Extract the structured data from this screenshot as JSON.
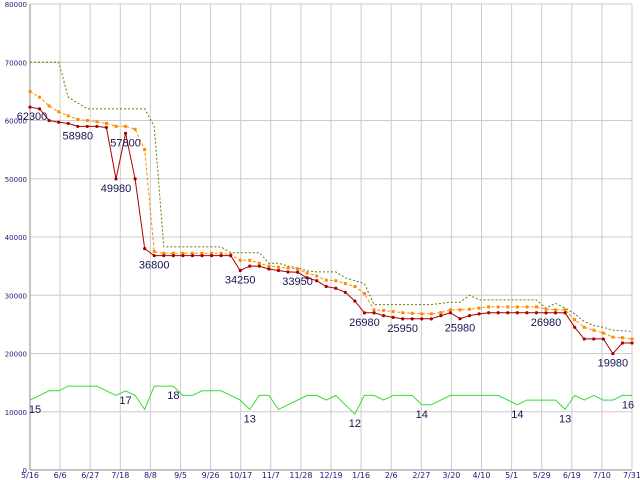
{
  "chart_data": {
    "type": "line",
    "title": "",
    "xlabel": "",
    "ylabel": "",
    "ylim": [
      0,
      80000
    ],
    "y_ticks": [
      0,
      10000,
      20000,
      30000,
      40000,
      50000,
      60000,
      70000,
      80000
    ],
    "grid": true,
    "x_tick_labels": [
      "5/16",
      "6/6",
      "6/27",
      "7/18",
      "8/8",
      "9/5",
      "9/26",
      "10/17",
      "11/7",
      "11/28",
      "12/19",
      "1/16",
      "2/6",
      "2/27",
      "3/20",
      "4/10",
      "5/1",
      "5/29",
      "6/19",
      "7/10",
      "7/31"
    ],
    "colors": {
      "price": "#aa0000",
      "average": "#ff8c00",
      "upper": "#6b7a00",
      "count": "#33dd33",
      "grid": "#cccccc",
      "text": "#1a1a7a"
    },
    "series": [
      {
        "key": "price",
        "style": "solid-markers",
        "points": [
          [
            0,
            62300
          ],
          [
            1,
            62000
          ],
          [
            2,
            60000
          ],
          [
            3,
            59700
          ],
          [
            4,
            59500
          ],
          [
            5,
            58980
          ],
          [
            6,
            58980
          ],
          [
            7,
            58980
          ],
          [
            8,
            58800
          ],
          [
            9,
            49980
          ],
          [
            10,
            57800
          ],
          [
            11,
            49980
          ],
          [
            12,
            38000
          ],
          [
            13,
            36800
          ],
          [
            14,
            36800
          ],
          [
            15,
            36800
          ],
          [
            16,
            36800
          ],
          [
            17,
            36800
          ],
          [
            18,
            36800
          ],
          [
            19,
            36800
          ],
          [
            20,
            36800
          ],
          [
            21,
            36800
          ],
          [
            22,
            34250
          ],
          [
            23,
            35000
          ],
          [
            24,
            35000
          ],
          [
            25,
            34500
          ],
          [
            26,
            34250
          ],
          [
            27,
            34000
          ],
          [
            28,
            33950
          ],
          [
            29,
            33000
          ],
          [
            30,
            32500
          ],
          [
            31,
            31500
          ],
          [
            32,
            31200
          ],
          [
            33,
            30500
          ],
          [
            34,
            29000
          ],
          [
            35,
            26980
          ],
          [
            36,
            26980
          ],
          [
            37,
            26500
          ],
          [
            38,
            26200
          ],
          [
            39,
            25950
          ],
          [
            40,
            25950
          ],
          [
            41,
            25950
          ],
          [
            42,
            25950
          ],
          [
            43,
            26500
          ],
          [
            44,
            27000
          ],
          [
            45,
            25980
          ],
          [
            46,
            26500
          ],
          [
            47,
            26800
          ],
          [
            48,
            27000
          ],
          [
            49,
            27000
          ],
          [
            50,
            27000
          ],
          [
            51,
            27000
          ],
          [
            52,
            27000
          ],
          [
            53,
            27000
          ],
          [
            54,
            26980
          ],
          [
            55,
            26980
          ],
          [
            56,
            26980
          ],
          [
            57,
            24500
          ],
          [
            58,
            22500
          ],
          [
            59,
            22500
          ],
          [
            60,
            22500
          ],
          [
            61,
            19980
          ],
          [
            62,
            21800
          ],
          [
            63,
            21800
          ]
        ]
      },
      {
        "key": "average",
        "style": "dashed-markers",
        "points": [
          [
            0,
            65000
          ],
          [
            1,
            64000
          ],
          [
            2,
            62500
          ],
          [
            3,
            61500
          ],
          [
            4,
            60800
          ],
          [
            5,
            60200
          ],
          [
            6,
            60000
          ],
          [
            7,
            59800
          ],
          [
            8,
            59500
          ],
          [
            9,
            59000
          ],
          [
            10,
            59000
          ],
          [
            11,
            58500
          ],
          [
            12,
            55000
          ],
          [
            13,
            37500
          ],
          [
            14,
            37200
          ],
          [
            15,
            37200
          ],
          [
            16,
            37200
          ],
          [
            17,
            37200
          ],
          [
            18,
            37200
          ],
          [
            19,
            37200
          ],
          [
            20,
            37200
          ],
          [
            21,
            37000
          ],
          [
            22,
            36000
          ],
          [
            23,
            36000
          ],
          [
            24,
            35500
          ],
          [
            25,
            35000
          ],
          [
            26,
            34800
          ],
          [
            27,
            34700
          ],
          [
            28,
            34500
          ],
          [
            29,
            33800
          ],
          [
            30,
            33300
          ],
          [
            31,
            32600
          ],
          [
            32,
            32500
          ],
          [
            33,
            32000
          ],
          [
            34,
            31500
          ],
          [
            35,
            30300
          ],
          [
            36,
            27500
          ],
          [
            37,
            27400
          ],
          [
            38,
            27200
          ],
          [
            39,
            27000
          ],
          [
            40,
            26900
          ],
          [
            41,
            26800
          ],
          [
            42,
            26800
          ],
          [
            43,
            27000
          ],
          [
            44,
            27500
          ],
          [
            45,
            27500
          ],
          [
            46,
            27600
          ],
          [
            47,
            27800
          ],
          [
            48,
            28000
          ],
          [
            49,
            28000
          ],
          [
            50,
            28000
          ],
          [
            51,
            28000
          ],
          [
            52,
            28000
          ],
          [
            53,
            28000
          ],
          [
            54,
            27600
          ],
          [
            55,
            27500
          ],
          [
            56,
            27500
          ],
          [
            57,
            25800
          ],
          [
            58,
            24500
          ],
          [
            59,
            24000
          ],
          [
            60,
            23500
          ],
          [
            61,
            22800
          ],
          [
            62,
            22700
          ],
          [
            63,
            22500
          ]
        ]
      },
      {
        "key": "upper",
        "style": "dotted",
        "points": [
          [
            0,
            70000
          ],
          [
            3,
            70000
          ],
          [
            4,
            64000
          ],
          [
            5,
            63000
          ],
          [
            6,
            62000
          ],
          [
            12,
            62000
          ],
          [
            13,
            59000
          ],
          [
            14,
            38300
          ],
          [
            19,
            38300
          ],
          [
            20,
            38300
          ],
          [
            21,
            37300
          ],
          [
            22,
            37300
          ],
          [
            23,
            37300
          ],
          [
            24,
            37300
          ],
          [
            25,
            35500
          ],
          [
            26,
            35500
          ],
          [
            27,
            35000
          ],
          [
            28,
            34700
          ],
          [
            29,
            34200
          ],
          [
            30,
            34000
          ],
          [
            31,
            34000
          ],
          [
            32,
            34000
          ],
          [
            33,
            33000
          ],
          [
            34,
            32500
          ],
          [
            35,
            32000
          ],
          [
            36,
            28400
          ],
          [
            37,
            28400
          ],
          [
            38,
            28400
          ],
          [
            39,
            28400
          ],
          [
            40,
            28400
          ],
          [
            41,
            28400
          ],
          [
            42,
            28400
          ],
          [
            43,
            28600
          ],
          [
            44,
            28800
          ],
          [
            45,
            28800
          ],
          [
            46,
            30000
          ],
          [
            47,
            29200
          ],
          [
            48,
            29200
          ],
          [
            49,
            29200
          ],
          [
            50,
            29200
          ],
          [
            51,
            29200
          ],
          [
            52,
            29200
          ],
          [
            53,
            29200
          ],
          [
            54,
            27800
          ],
          [
            55,
            28600
          ],
          [
            56,
            27800
          ],
          [
            57,
            26800
          ],
          [
            58,
            25500
          ],
          [
            59,
            24800
          ],
          [
            60,
            24500
          ],
          [
            61,
            24000
          ],
          [
            62,
            23900
          ],
          [
            63,
            23800
          ]
        ]
      },
      {
        "key": "count",
        "style": "solid",
        "points": [
          [
            0,
            15
          ],
          [
            1,
            16
          ],
          [
            2,
            17
          ],
          [
            3,
            17
          ],
          [
            4,
            18
          ],
          [
            5,
            18
          ],
          [
            6,
            18
          ],
          [
            7,
            18
          ],
          [
            8,
            17
          ],
          [
            9,
            16
          ],
          [
            10,
            17
          ],
          [
            11,
            16
          ],
          [
            12,
            13
          ],
          [
            13,
            18
          ],
          [
            14,
            18
          ],
          [
            15,
            18
          ],
          [
            16,
            16
          ],
          [
            17,
            16
          ],
          [
            18,
            17
          ],
          [
            19,
            17
          ],
          [
            20,
            17
          ],
          [
            21,
            16
          ],
          [
            22,
            15
          ],
          [
            23,
            13
          ],
          [
            24,
            16
          ],
          [
            25,
            16
          ],
          [
            26,
            13
          ],
          [
            27,
            14
          ],
          [
            28,
            15
          ],
          [
            29,
            16
          ],
          [
            30,
            16
          ],
          [
            31,
            15
          ],
          [
            32,
            16
          ],
          [
            33,
            14
          ],
          [
            34,
            12
          ],
          [
            35,
            16
          ],
          [
            36,
            16
          ],
          [
            37,
            15
          ],
          [
            38,
            16
          ],
          [
            39,
            16
          ],
          [
            40,
            16
          ],
          [
            41,
            14
          ],
          [
            42,
            14
          ],
          [
            43,
            15
          ],
          [
            44,
            16
          ],
          [
            45,
            16
          ],
          [
            46,
            16
          ],
          [
            47,
            16
          ],
          [
            48,
            16
          ],
          [
            49,
            16
          ],
          [
            50,
            15
          ],
          [
            51,
            14
          ],
          [
            52,
            15
          ],
          [
            53,
            15
          ],
          [
            54,
            15
          ],
          [
            55,
            15
          ],
          [
            56,
            13
          ],
          [
            57,
            16
          ],
          [
            58,
            15
          ],
          [
            59,
            16
          ],
          [
            60,
            15
          ],
          [
            61,
            15
          ],
          [
            62,
            16
          ],
          [
            63,
            16
          ]
        ]
      }
    ],
    "count_scale": {
      "min": 0,
      "max": 100
    },
    "price_labels": [
      {
        "i": 0,
        "text": "62300"
      },
      {
        "i": 5,
        "text": "58980"
      },
      {
        "i": 10,
        "text": "57800"
      },
      {
        "i": 9,
        "text": "49980"
      },
      {
        "i": 13,
        "text": "36800"
      },
      {
        "i": 22,
        "text": "34250"
      },
      {
        "i": 28,
        "text": "33950"
      },
      {
        "i": 35,
        "text": "26980"
      },
      {
        "i": 39,
        "text": "25950"
      },
      {
        "i": 45,
        "text": "25980"
      },
      {
        "i": 54,
        "text": "26980"
      },
      {
        "i": 61,
        "text": "19980"
      }
    ],
    "count_labels": [
      {
        "i": 0,
        "text": "15"
      },
      {
        "i": 10,
        "text": "17"
      },
      {
        "i": 15,
        "text": "18"
      },
      {
        "i": 23,
        "text": "13"
      },
      {
        "i": 34,
        "text": "12"
      },
      {
        "i": 41,
        "text": "14"
      },
      {
        "i": 51,
        "text": "14"
      },
      {
        "i": 56,
        "text": "13"
      },
      {
        "i": 63,
        "text": "16"
      }
    ]
  }
}
